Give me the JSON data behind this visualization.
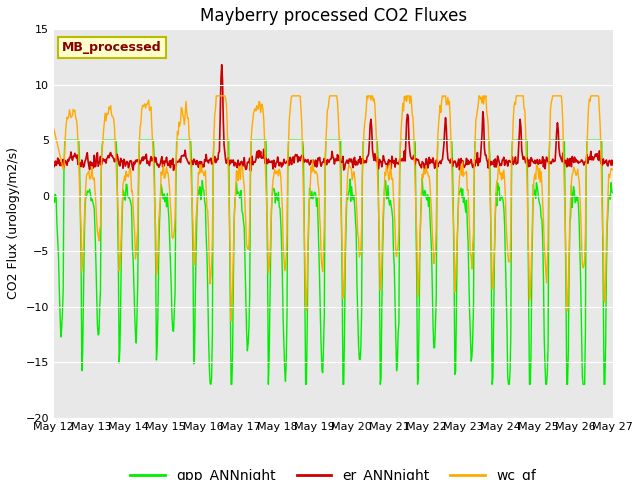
{
  "title": "Mayberry processed CO2 Fluxes",
  "ylabel": "CO2 Flux (urology/m2/s)",
  "ylim": [
    -20,
    15
  ],
  "yticks": [
    -20,
    -15,
    -10,
    -5,
    0,
    5,
    10,
    15
  ],
  "xtick_labels": [
    "May 12",
    "May 13",
    "May 14",
    "May 15",
    "May 16",
    "May 17",
    "May 18",
    "May 19",
    "May 20",
    "May 21",
    "May 22",
    "May 23",
    "May 24",
    "May 25",
    "May 26",
    "May 27"
  ],
  "color_gpp": "#00ee00",
  "color_er": "#cc0000",
  "color_wc": "#ffaa00",
  "legend_labels": [
    "gpp_ANNnight",
    "er_ANNnight",
    "wc_gf"
  ],
  "label_text": "MB_processed",
  "label_facecolor": "#ffffcc",
  "label_edgecolor": "#bbbb00",
  "label_textcolor": "#880000",
  "bg_color": "#e8e8e8",
  "fig_bg": "#ffffff",
  "title_fontsize": 12,
  "axis_fontsize": 9,
  "tick_fontsize": 8,
  "legend_fontsize": 10
}
